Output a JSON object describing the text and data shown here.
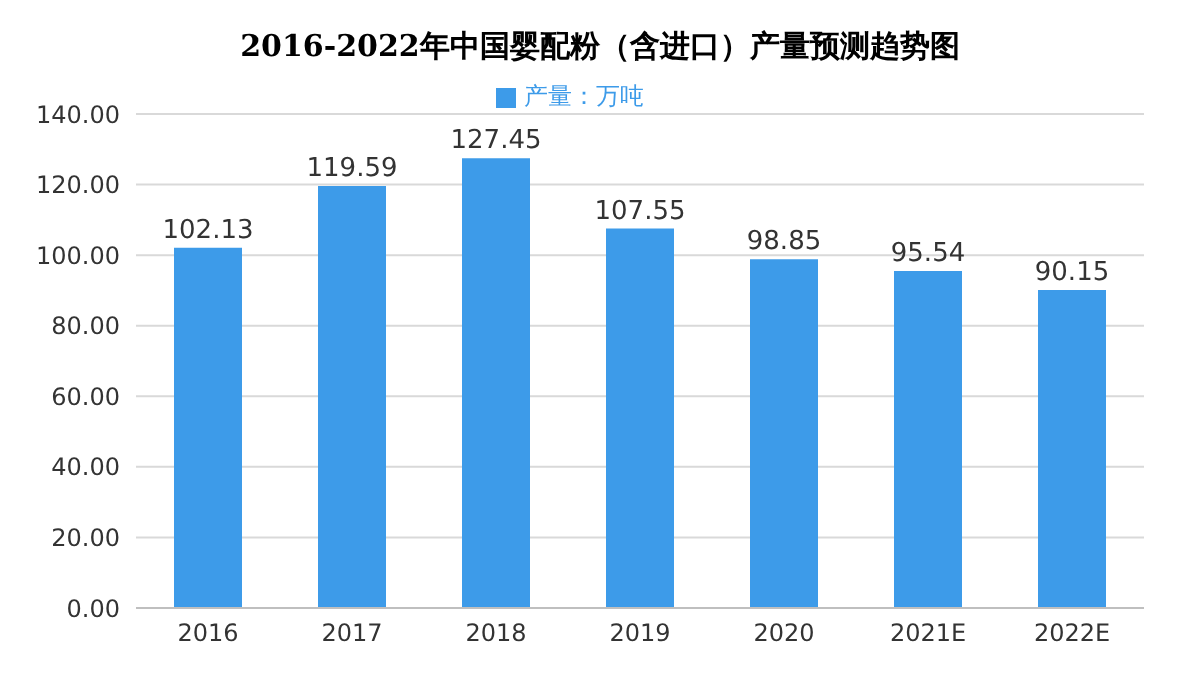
{
  "chart_data": {
    "type": "bar",
    "title": "2016-2022年中国婴配粉（含进口）产量预测趋势图",
    "categories": [
      "2016",
      "2017",
      "2018",
      "2019",
      "2020",
      "2021E",
      "2022E"
    ],
    "series": [
      {
        "name": "产量：万吨",
        "color": "#3d9be9",
        "values": [
          102.13,
          119.59,
          127.45,
          107.55,
          98.85,
          95.54,
          90.15
        ]
      }
    ],
    "ylim": [
      0,
      140
    ],
    "yticks": [
      {
        "value": 0,
        "label": "0.00"
      },
      {
        "value": 20,
        "label": "20.00"
      },
      {
        "value": 40,
        "label": "40.00"
      },
      {
        "value": 60,
        "label": "60.00"
      },
      {
        "value": 80,
        "label": "80.00"
      },
      {
        "value": 100,
        "label": "100.00"
      },
      {
        "value": 120,
        "label": "120.00"
      },
      {
        "value": 140,
        "label": "140.00"
      }
    ],
    "grid": "y",
    "legend": "top",
    "data_labels": true
  }
}
